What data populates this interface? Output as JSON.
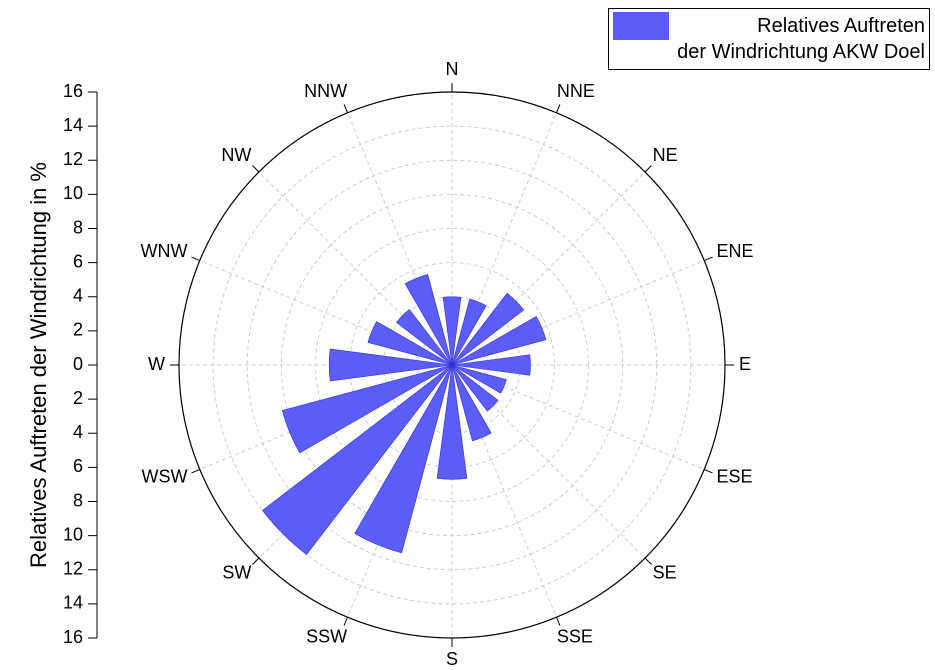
{
  "chart_data": {
    "type": "polar_bar",
    "categories": [
      "N",
      "NNE",
      "NE",
      "ENE",
      "E",
      "ESE",
      "SE",
      "SSE",
      "S",
      "SSW",
      "SW",
      "WSW",
      "W",
      "WNW",
      "NW",
      "NNW"
    ],
    "series": [
      {
        "name": "Relatives Auftreten\nder Windrichtung AKW Doel",
        "color": "#5c5cf7",
        "values": [
          4.0,
          4.0,
          5.3,
          5.7,
          4.6,
          3.3,
          3.4,
          4.6,
          6.7,
          11.4,
          14.0,
          10.3,
          7.2,
          5.1,
          4.1,
          5.5
        ]
      }
    ],
    "ylabel": "Relatives Auftreten der Windrichtung in %",
    "rlim": [
      0,
      16
    ],
    "rticks": [
      0,
      2,
      4,
      6,
      8,
      10,
      12,
      14,
      16
    ],
    "grid": true,
    "legend": "upper right"
  }
}
